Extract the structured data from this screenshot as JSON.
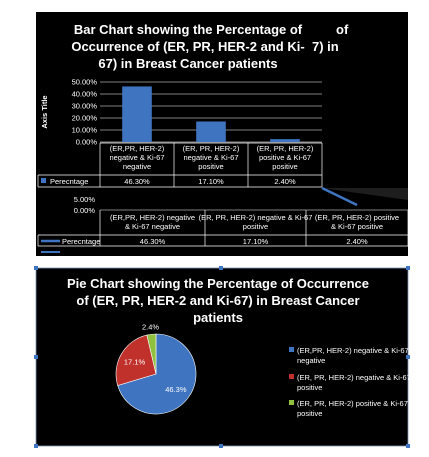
{
  "chart_data": [
    {
      "type": "bar",
      "title": "Bar Chart showing the Percentage of Occurrence of (ER, PR, HER-2 and Ki-67) in Breast Cancer patients",
      "title_lines": [
        "Bar Chart showing the Percentage of",
        "Occurrence of (ER, PR, HER-2 and Ki-",
        "67) in Breast Cancer patients"
      ],
      "ylabel": "Axis Title",
      "ylim": [
        0,
        50
      ],
      "yticks": [
        "0.00%",
        "10.00%",
        "20.00%",
        "30.00%",
        "40.00%",
        "50.00%"
      ],
      "categories": [
        "(ER,PR, HER-2) negative & Ki-67 negative",
        "(ER, PR, HER-2) negative & Ki-67 positive",
        "(ER, PR, HER-2) positive & Ki-67 positive"
      ],
      "category_lines": [
        [
          "(ER,PR, HER-2)",
          "negative & Ki-67",
          "negative"
        ],
        [
          "(ER, PR, HER-2)",
          "negative & Ki-67",
          "positive"
        ],
        [
          "(ER, PR, HER-2)",
          "positive & Ki-67",
          "positive"
        ]
      ],
      "series": [
        {
          "name": "Perecntage",
          "values": [
            46.3,
            17.1,
            2.4
          ]
        }
      ],
      "value_labels": [
        "46.30%",
        "17.10%",
        "2.40%"
      ],
      "color": "#3e74c0",
      "legend": "data table"
    },
    {
      "type": "line",
      "title": "",
      "yticks": [
        "5.00%",
        "0.00%"
      ],
      "categories": [
        "(ER,PR, HER-2) negative & Ki-67 negative",
        "(ER, PR, HER-2) negative & Ki-67 positive",
        "(ER, PR, HER-2) positive & Ki-67 positive"
      ],
      "category_lines": [
        [
          "(ER,PR, HER-2) negative",
          "& Ki-67 negative"
        ],
        [
          "(ER, PR, HER-2) negative & Ki-67",
          "positive"
        ],
        [
          "(ER, PR, HER-2) positive",
          "& Ki-67 positive"
        ]
      ],
      "series": [
        {
          "name": "Perecntage",
          "values": [
            46.3,
            17.1,
            2.4
          ]
        }
      ],
      "value_labels": [
        "46.30%",
        "17.10%",
        "2.40%"
      ],
      "color": "#3e74c0",
      "legend": "data table"
    },
    {
      "type": "pie",
      "title": "Pie Chart showing the Percentage of Occurrence of (ER, PR, HER-2 and Ki-67) in Breast Cancer patients",
      "title_lines": [
        "Pie Chart showing the Percentage of Occurrence",
        "of (ER, PR, HER-2 and Ki-67) in Breast Cancer",
        "patients"
      ],
      "categories": [
        "(ER,PR, HER-2) negative & Ki-67 negative",
        "(ER, PR, HER-2) negative & Ki-67 positive",
        "(ER, PR, HER-2) positive & Ki-67 positive"
      ],
      "legend_lines": [
        [
          "(ER,PR, HER-2) negative & Ki-67",
          "negative"
        ],
        [
          "(ER, PR, HER-2) negative & Ki-67",
          "positive"
        ],
        [
          "(ER, PR, HER-2) positive & Ki-67",
          "positive"
        ]
      ],
      "values": [
        46.3,
        17.1,
        2.4
      ],
      "value_labels": [
        "46.3%",
        "17.1%",
        "2.4%"
      ],
      "colors": [
        "#3e74c0",
        "#c0312c",
        "#90c040"
      ],
      "legend": "right"
    }
  ]
}
